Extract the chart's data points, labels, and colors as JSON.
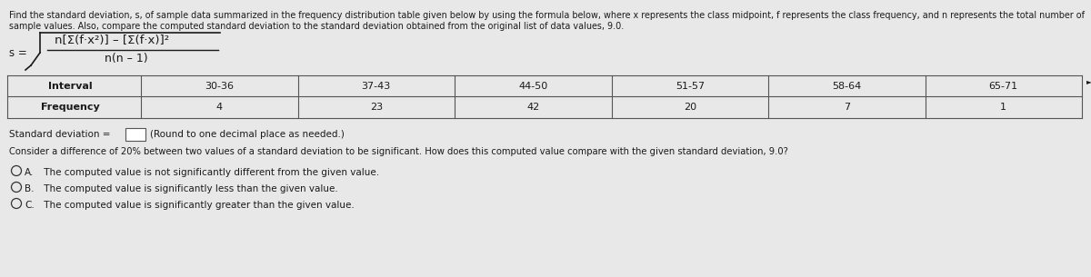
{
  "bg_color": "#e8e8e8",
  "text_color": "#1a1a1a",
  "header_line1": "Find the standard deviation, s, of sample data summarized in the frequency distribution table given below by using the formula below, where x represents the class midpoint, f represents the class frequency, and n represents the total number of",
  "header_line2": "sample values. Also, compare the computed standard deviation to the standard deviation obtained from the original list of data values, 9.0.",
  "intervals": [
    "30-36",
    "37-43",
    "44-50",
    "51-57",
    "58-64",
    "65-71"
  ],
  "frequencies": [
    "4",
    "23",
    "42",
    "20",
    "7",
    "1"
  ],
  "row_labels": [
    "Interval",
    "Frequency"
  ],
  "std_dev_label": "Standard deviation =",
  "std_dev_note": "(Round to one decimal place as needed.)",
  "consider_text": "Consider a difference of 20% between two values of a standard deviation to be significant. How does this computed value compare with the given standard deviation, 9.0?",
  "option_a": "A.  The computed value is not significantly different from the given value.",
  "option_b": "B.  The computed value is significantly less than the given value.",
  "option_c": "C.  The computed value is significantly greater than the given value."
}
